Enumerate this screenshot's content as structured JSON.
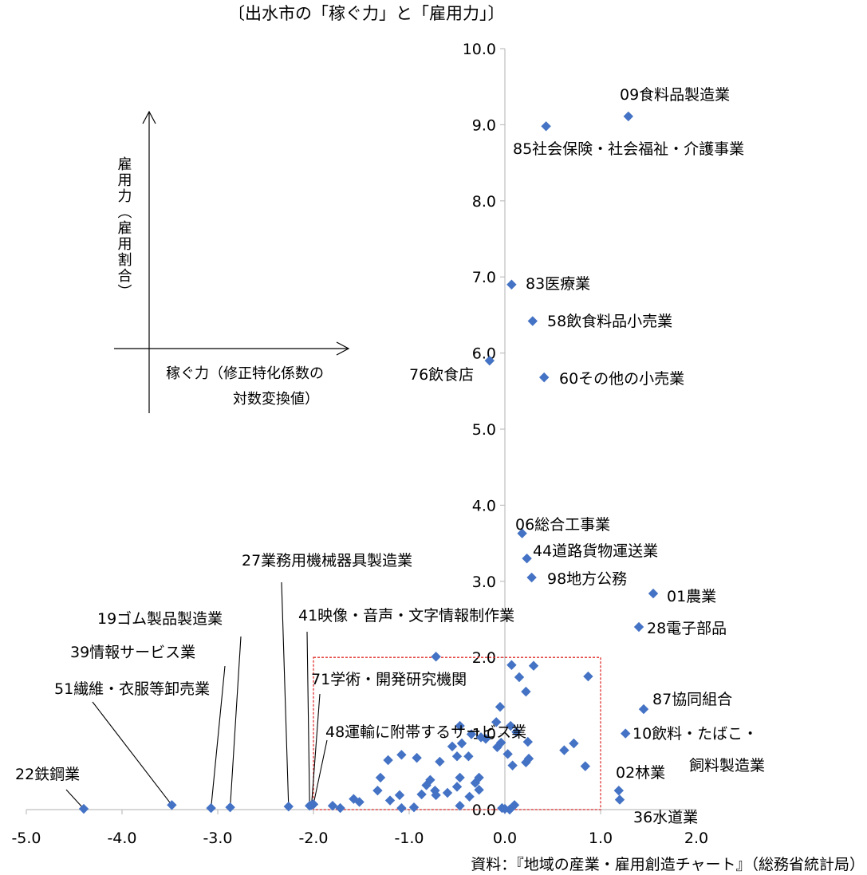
{
  "chart_data": {
    "type": "scatter",
    "title": "〔出水市の「稼ぐ力」と「雇用力」〕",
    "source": "資料：『地域の産業・雇用創造チャート』（総務省統計局）",
    "xlim": [
      -5.0,
      2.0
    ],
    "ylim": [
      0.0,
      10.0
    ],
    "x_ticks": [
      "-5.0",
      "-4.0",
      "-3.0",
      "-2.0",
      "-1.0",
      "0.0",
      "1.0",
      "2.0"
    ],
    "y_ticks": [
      "0.0",
      "1.0",
      "2.0",
      "3.0",
      "4.0",
      "5.0",
      "6.0",
      "7.0",
      "8.0",
      "9.0",
      "10.0"
    ],
    "marker_color": "#4472C4",
    "highlight_box": {
      "x": [
        -2.0,
        1.0
      ],
      "y": [
        0.0,
        2.0
      ],
      "color": "#E0302F"
    },
    "inset_axes": {
      "y_label": "雇用力（雇用割合）",
      "x_label_line1": "稼ぐ力（修正特化係数の",
      "x_label_line2": "対数変換値）"
    },
    "labeled_points": [
      {
        "label": "09食料品製造業",
        "x": 1.29,
        "y": 9.11
      },
      {
        "label": "85社会保険・社会福祉・介護事業",
        "x": 0.43,
        "y": 8.98
      },
      {
        "label": "83医療業",
        "x": 0.07,
        "y": 6.9
      },
      {
        "label": "58飲食料品小売業",
        "x": 0.29,
        "y": 6.42
      },
      {
        "label": "76飲食店",
        "x": -0.16,
        "y": 5.9
      },
      {
        "label": "60その他の小売業",
        "x": 0.41,
        "y": 5.68
      },
      {
        "label": "06総合工事業",
        "x": 0.18,
        "y": 3.63
      },
      {
        "label": "44道路貨物運送業",
        "x": 0.23,
        "y": 3.3
      },
      {
        "label": "98地方公務",
        "x": 0.28,
        "y": 3.05
      },
      {
        "label": "01農業",
        "x": 1.55,
        "y": 2.84
      },
      {
        "label": "28電子部品",
        "x": 1.4,
        "y": 2.4
      },
      {
        "label": "87協同組合",
        "x": 1.45,
        "y": 1.32
      },
      {
        "label": "10飲料・たばこ・",
        "label2": "飼料製造業",
        "x": 1.26,
        "y": 1.0
      },
      {
        "label": "02林業",
        "x": 1.19,
        "y": 0.25
      },
      {
        "label": "36水道業",
        "x": 1.2,
        "y": 0.13
      },
      {
        "label": "22鉄鋼業",
        "x": -4.4,
        "y": 0.01
      },
      {
        "label": "51繊維・衣服等卸売業",
        "x": -3.48,
        "y": 0.06
      },
      {
        "label": "39情報サービス業",
        "x": -3.07,
        "y": 0.02
      },
      {
        "label": "19ゴム製品製造業",
        "x": -2.87,
        "y": 0.03
      },
      {
        "label": "27業務用機械器具製造業",
        "x": -2.26,
        "y": 0.04
      },
      {
        "label": "41映像・音声・文字情報制作業",
        "x": -2.04,
        "y": 0.05
      },
      {
        "label": "71学術・開発研究機関",
        "x": -2.02,
        "y": 0.06
      },
      {
        "label": "48運輸に附帯するサービス業",
        "x": -2.0,
        "y": 0.07
      }
    ],
    "other_points": [
      [
        -0.72,
        2.01
      ],
      [
        0.07,
        1.9
      ],
      [
        0.3,
        1.89
      ],
      [
        0.87,
        1.75
      ],
      [
        0.15,
        1.74
      ],
      [
        0.22,
        1.55
      ],
      [
        -0.05,
        1.35
      ],
      [
        -0.09,
        1.15
      ],
      [
        -0.47,
        1.1
      ],
      [
        0.12,
        1.02
      ],
      [
        0.06,
        1.1
      ],
      [
        -0.35,
        0.99
      ],
      [
        -0.25,
        0.95
      ],
      [
        -0.45,
        0.87
      ],
      [
        -0.2,
        0.93
      ],
      [
        -0.04,
        0.88
      ],
      [
        -0.55,
        0.83
      ],
      [
        -0.08,
        0.82
      ],
      [
        0.24,
        0.89
      ],
      [
        0.72,
        0.87
      ],
      [
        0.03,
        0.73
      ],
      [
        0.25,
        0.67
      ],
      [
        0.62,
        0.78
      ],
      [
        -1.08,
        0.72
      ],
      [
        -0.92,
        0.68
      ],
      [
        -1.22,
        0.65
      ],
      [
        -0.38,
        0.7
      ],
      [
        -0.5,
        0.7
      ],
      [
        0.08,
        0.58
      ],
      [
        0.22,
        0.62
      ],
      [
        0.84,
        0.57
      ],
      [
        -0.68,
        0.63
      ],
      [
        -1.3,
        0.42
      ],
      [
        -0.47,
        0.42
      ],
      [
        -0.27,
        0.42
      ],
      [
        -0.78,
        0.39
      ],
      [
        -0.82,
        0.32
      ],
      [
        -0.31,
        0.35
      ],
      [
        -0.73,
        0.25
      ],
      [
        -0.5,
        0.3
      ],
      [
        -0.6,
        0.22
      ],
      [
        -0.27,
        0.26
      ],
      [
        -1.33,
        0.25
      ],
      [
        -0.72,
        0.19
      ],
      [
        -1.1,
        0.19
      ],
      [
        -0.87,
        0.2
      ],
      [
        -0.37,
        0.17
      ],
      [
        -1.58,
        0.14
      ],
      [
        -1.2,
        0.12
      ],
      [
        -1.52,
        0.1
      ],
      [
        -0.47,
        0.05
      ],
      [
        0.1,
        0.06
      ],
      [
        -1.8,
        0.05
      ],
      [
        -1.72,
        0.02
      ],
      [
        -1.08,
        0.02
      ],
      [
        -0.95,
        0.03
      ],
      [
        -0.03,
        0.02
      ],
      [
        0.0,
        0.01
      ],
      [
        0.05,
        0.0
      ]
    ]
  }
}
